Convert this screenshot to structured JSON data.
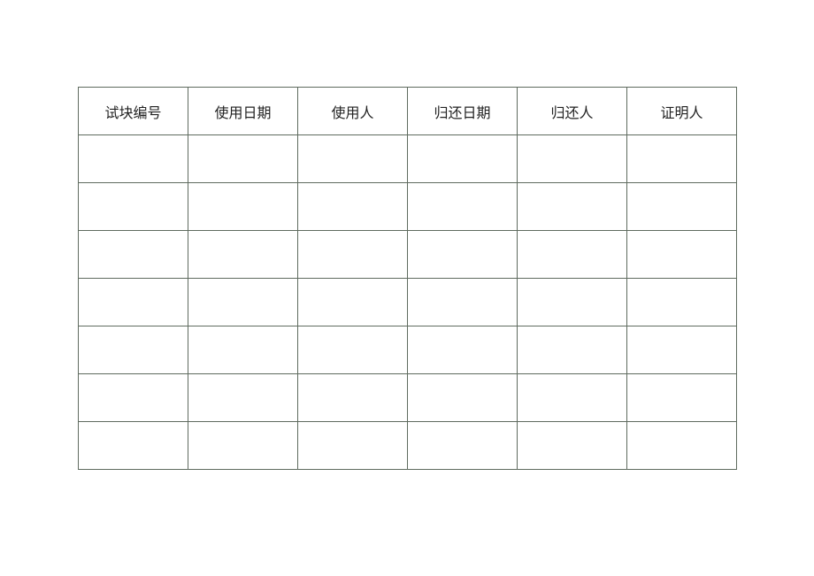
{
  "table": {
    "headers": [
      "试块编号",
      "使用日期",
      "使用人",
      "归还日期",
      "归还人",
      "证明人"
    ],
    "rows": [
      [
        "",
        "",
        "",
        "",
        "",
        ""
      ],
      [
        "",
        "",
        "",
        "",
        "",
        ""
      ],
      [
        "",
        "",
        "",
        "",
        "",
        ""
      ],
      [
        "",
        "",
        "",
        "",
        "",
        ""
      ],
      [
        "",
        "",
        "",
        "",
        "",
        ""
      ],
      [
        "",
        "",
        "",
        "",
        "",
        ""
      ],
      [
        "",
        "",
        "",
        "",
        "",
        ""
      ]
    ]
  },
  "colors": {
    "border": "#5f6b5f"
  }
}
